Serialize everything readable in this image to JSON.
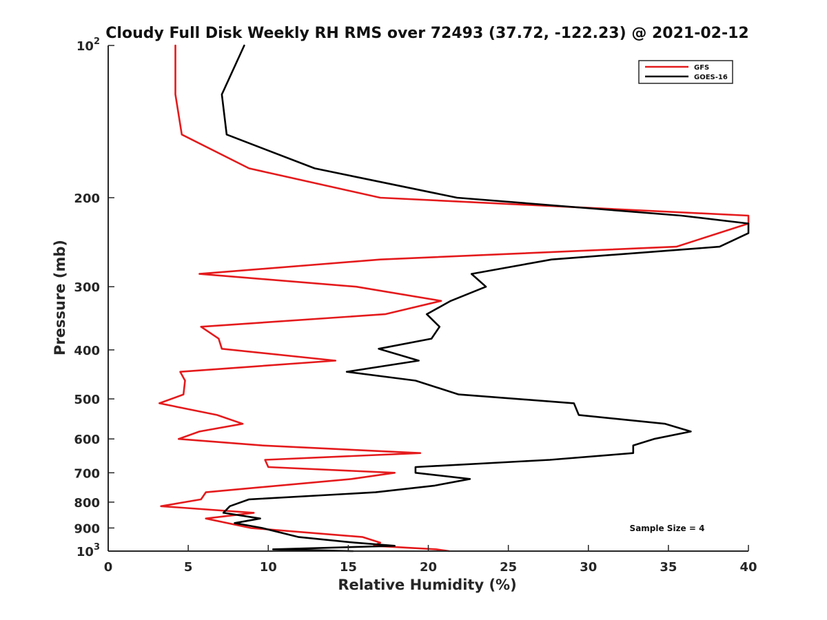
{
  "chart_data": {
    "type": "line",
    "title": "Cloudy Full Disk Weekly RH RMS over 72493 (37.72, -122.23) @ 2021-02-12",
    "xlabel": "Relative Humidity (%)",
    "ylabel": "Pressure (mb)",
    "xlim": [
      0,
      40
    ],
    "ylim": [
      100,
      1000
    ],
    "y_scale": "log",
    "y_reversed": true,
    "grid": false,
    "legend_position": "top-right",
    "x_ticks": [
      "0",
      "5",
      "10",
      "15",
      "20",
      "25",
      "30",
      "35",
      "40"
    ],
    "y_ticks": [
      {
        "value": 100,
        "base": "10",
        "exp": "2"
      },
      {
        "value": 200,
        "label": "200"
      },
      {
        "value": 300,
        "label": "300"
      },
      {
        "value": 400,
        "label": "400"
      },
      {
        "value": 500,
        "label": "500"
      },
      {
        "value": 600,
        "label": "600"
      },
      {
        "value": 700,
        "label": "700"
      },
      {
        "value": 800,
        "label": "800"
      },
      {
        "value": 900,
        "label": "900"
      },
      {
        "value": 1000,
        "base": "10",
        "exp": "3"
      }
    ],
    "series": [
      {
        "name": "GFS",
        "color": "#e41a1c",
        "points": [
          [
            4.2,
            100
          ],
          [
            4.2,
            125
          ],
          [
            4.6,
            150
          ],
          [
            8.8,
            175
          ],
          [
            17,
            200
          ],
          [
            40,
            217
          ],
          [
            40,
            225
          ],
          [
            35.5,
            250
          ],
          [
            17,
            265
          ],
          [
            5.7,
            283
          ],
          [
            15.5,
            300
          ],
          [
            20.8,
            320
          ],
          [
            17.3,
            340
          ],
          [
            5.8,
            360
          ],
          [
            6.9,
            380
          ],
          [
            7.1,
            398
          ],
          [
            14.2,
            420
          ],
          [
            4.5,
            442
          ],
          [
            4.8,
            460
          ],
          [
            4.7,
            490
          ],
          [
            3.2,
            510
          ],
          [
            6.8,
            538
          ],
          [
            8.4,
            560
          ],
          [
            5.7,
            580
          ],
          [
            4.4,
            600
          ],
          [
            9.6,
            618
          ],
          [
            19.5,
            640
          ],
          [
            9.8,
            660
          ],
          [
            10,
            682
          ],
          [
            17.9,
            700
          ],
          [
            15.2,
            720
          ],
          [
            6.1,
            765
          ],
          [
            5.8,
            790
          ],
          [
            3.3,
            815
          ],
          [
            9.1,
            840
          ],
          [
            6.1,
            862
          ],
          [
            8.9,
            900
          ],
          [
            15.9,
            938
          ],
          [
            17,
            962
          ],
          [
            16.6,
            976
          ],
          [
            20.5,
            992
          ],
          [
            21.3,
            1000
          ]
        ]
      },
      {
        "name": "GOES-16",
        "color": "#000000",
        "points": [
          [
            8.5,
            100
          ],
          [
            7.1,
            125
          ],
          [
            7.4,
            150
          ],
          [
            12.9,
            175
          ],
          [
            21.8,
            200
          ],
          [
            35.8,
            217
          ],
          [
            40,
            225
          ],
          [
            40,
            235
          ],
          [
            38.2,
            250
          ],
          [
            27.7,
            265
          ],
          [
            22.7,
            283
          ],
          [
            23.6,
            300
          ],
          [
            21.4,
            320
          ],
          [
            19.9,
            340
          ],
          [
            20.7,
            360
          ],
          [
            20.2,
            380
          ],
          [
            16.9,
            398
          ],
          [
            19.4,
            420
          ],
          [
            14.9,
            442
          ],
          [
            19.2,
            460
          ],
          [
            21.9,
            490
          ],
          [
            29.1,
            510
          ],
          [
            29.4,
            538
          ],
          [
            34.8,
            560
          ],
          [
            36.4,
            580
          ],
          [
            34.1,
            600
          ],
          [
            32.8,
            618
          ],
          [
            32.8,
            640
          ],
          [
            27.6,
            660
          ],
          [
            19.2,
            682
          ],
          [
            19.2,
            700
          ],
          [
            22.6,
            720
          ],
          [
            20.4,
            742
          ],
          [
            16.7,
            765
          ],
          [
            8.8,
            790
          ],
          [
            7.6,
            815
          ],
          [
            7.2,
            840
          ],
          [
            9.5,
            862
          ],
          [
            7.9,
            880
          ],
          [
            9.6,
            900
          ],
          [
            11.9,
            938
          ],
          [
            15.4,
            962
          ],
          [
            17.9,
            976
          ],
          [
            10.3,
            992
          ],
          [
            15.3,
            1000
          ]
        ]
      }
    ],
    "annotation": "Sample Size = 4"
  }
}
